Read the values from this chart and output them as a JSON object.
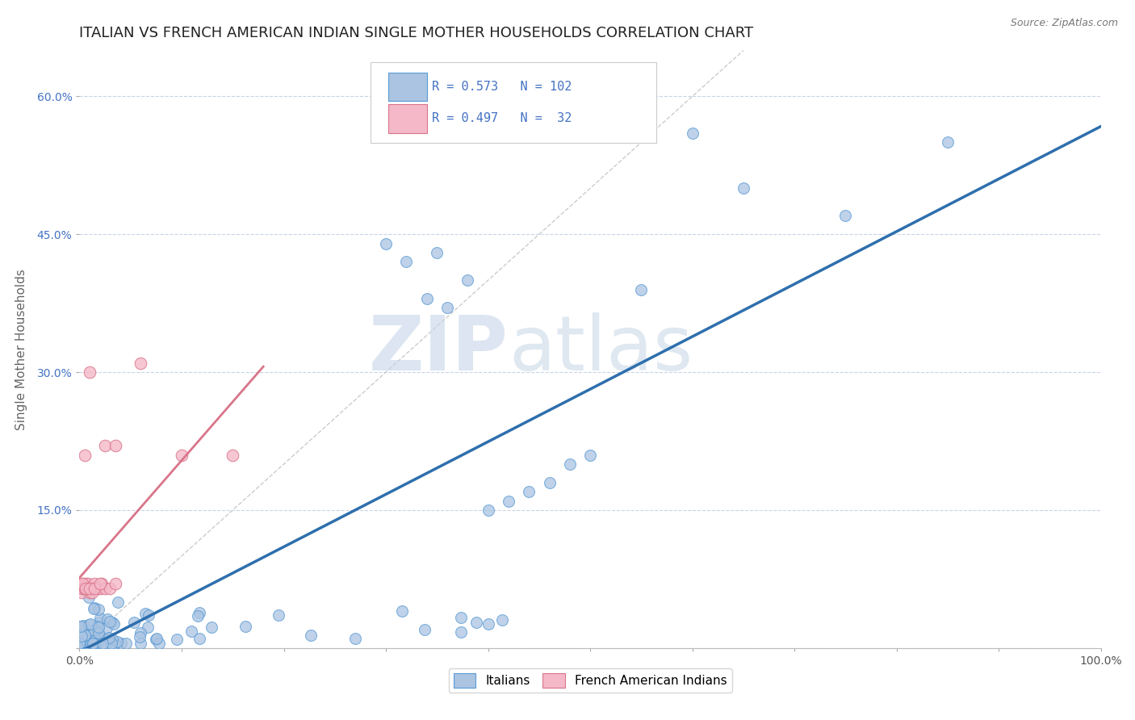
{
  "title": "ITALIAN VS FRENCH AMERICAN INDIAN SINGLE MOTHER HOUSEHOLDS CORRELATION CHART",
  "source": "Source: ZipAtlas.com",
  "ylabel": "Single Mother Households",
  "xlim": [
    0.0,
    1.0
  ],
  "ylim": [
    0.0,
    0.65
  ],
  "x_ticks": [
    0.0,
    0.1,
    0.2,
    0.3,
    0.4,
    0.5,
    0.6,
    0.7,
    0.8,
    0.9,
    1.0
  ],
  "y_ticks": [
    0.0,
    0.15,
    0.3,
    0.45,
    0.6
  ],
  "y_tick_labels": [
    "",
    "15.0%",
    "30.0%",
    "45.0%",
    "60.0%"
  ],
  "italian_color": "#aac4e2",
  "italian_edge_color": "#5b9bd5",
  "french_color": "#f4b8c8",
  "french_edge_color": "#d9758a",
  "italian_line_color": "#2e6fad",
  "french_line_color": "#d9758a",
  "diagonal_color": "#cccccc",
  "legend_italian_R": "0.573",
  "legend_italian_N": "102",
  "legend_french_R": "0.497",
  "legend_french_N": "32",
  "legend_label_italians": "Italians",
  "legend_label_french": "French American Indians",
  "watermark_zip": "ZIP",
  "watermark_atlas": "atlas",
  "background_color": "#ffffff",
  "grid_color": "#c8d4e8",
  "title_fontsize": 13,
  "label_fontsize": 11,
  "tick_fontsize": 10,
  "legend_text_color": "#4472c4"
}
